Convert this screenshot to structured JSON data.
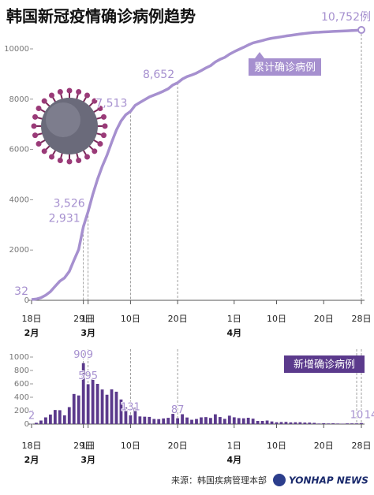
{
  "chart_data": [
    {
      "type": "line",
      "title": "韩国新冠疫情确诊病例趋势",
      "categories": [
        "18日",
        null,
        null,
        null,
        null,
        null,
        null,
        null,
        null,
        null,
        null,
        "29日",
        "1日",
        null,
        null,
        null,
        null,
        null,
        null,
        null,
        null,
        "10日",
        null,
        null,
        null,
        null,
        null,
        null,
        null,
        null,
        null,
        "20日",
        null,
        null,
        null,
        null,
        null,
        null,
        null,
        null,
        null,
        null,
        null,
        "1日",
        null,
        null,
        null,
        null,
        null,
        null,
        null,
        null,
        "10日",
        null,
        null,
        null,
        null,
        null,
        null,
        null,
        null,
        null,
        "20日",
        null,
        null,
        null,
        null,
        null,
        null,
        null,
        "28日"
      ],
      "month_categories": [
        "2月",
        null,
        null,
        null,
        null,
        null,
        null,
        null,
        null,
        null,
        null,
        null,
        "3月",
        null,
        null,
        null,
        null,
        null,
        null,
        null,
        null,
        null,
        null,
        null,
        null,
        null,
        null,
        null,
        null,
        null,
        null,
        null,
        null,
        null,
        null,
        null,
        null,
        null,
        null,
        null,
        null,
        null,
        null,
        "4月",
        null,
        null,
        null,
        null,
        null,
        null,
        null,
        null,
        null,
        null,
        null,
        null,
        null,
        null,
        null,
        null,
        null,
        null,
        null,
        null,
        null,
        null,
        null,
        null,
        null,
        null,
        null
      ],
      "series": [
        {
          "name": "累计确诊病例",
          "color": "#a690cf",
          "values": [
            32,
            51,
            104,
            204,
            346,
            556,
            763,
            893,
            1146,
            1595,
            2022,
            2931,
            3526,
            4212,
            4812,
            5328,
            5766,
            6284,
            6767,
            7134,
            7382,
            7513,
            7755,
            7869,
            7979,
            8086,
            8162,
            8236,
            8320,
            8413,
            8565,
            8652,
            8799,
            8897,
            8961,
            9037,
            9137,
            9241,
            9332,
            9478,
            9583,
            9661,
            9786,
            9887,
            9976,
            10062,
            10156,
            10237,
            10284,
            10331,
            10384,
            10423,
            10450,
            10480,
            10512,
            10537,
            10564,
            10591,
            10613,
            10635,
            10653,
            10661,
            10674,
            10683,
            10694,
            10702,
            10708,
            10718,
            10728,
            10738,
            10752
          ],
          "value_labels": [
            "32",
            null,
            null,
            null,
            null,
            null,
            null,
            null,
            null,
            null,
            null,
            "2,931",
            "3,526",
            null,
            null,
            null,
            null,
            null,
            null,
            null,
            null,
            "7,513",
            null,
            null,
            null,
            null,
            null,
            null,
            null,
            null,
            null,
            "8,652",
            null,
            null,
            null,
            null,
            null,
            null,
            null,
            null,
            null,
            null,
            null,
            null,
            null,
            null,
            null,
            null,
            null,
            null,
            null,
            null,
            null,
            null,
            null,
            null,
            null,
            null,
            null,
            null,
            null,
            null,
            null,
            null,
            null,
            null,
            null,
            null,
            null,
            null,
            "10,752例"
          ]
        }
      ],
      "ylim": [
        0,
        10000
      ],
      "yticks": [
        0,
        2000,
        4000,
        6000,
        8000,
        10000
      ],
      "grid": false
    },
    {
      "type": "bar",
      "categories": [
        "18日",
        null,
        null,
        null,
        null,
        null,
        null,
        null,
        null,
        null,
        null,
        "29日",
        "1日",
        null,
        null,
        null,
        null,
        null,
        null,
        null,
        null,
        "10日",
        null,
        null,
        null,
        null,
        null,
        null,
        null,
        null,
        null,
        "20日",
        null,
        null,
        null,
        null,
        null,
        null,
        null,
        null,
        null,
        null,
        null,
        "1日",
        null,
        null,
        null,
        null,
        null,
        null,
        null,
        null,
        "10日",
        null,
        null,
        null,
        null,
        null,
        null,
        null,
        null,
        null,
        "20日",
        null,
        null,
        null,
        null,
        null,
        null,
        null,
        "28日"
      ],
      "month_categories": [
        "2月",
        null,
        null,
        null,
        null,
        null,
        null,
        null,
        null,
        null,
        null,
        null,
        "3月",
        null,
        null,
        null,
        null,
        null,
        null,
        null,
        null,
        null,
        null,
        null,
        null,
        null,
        null,
        null,
        null,
        null,
        null,
        null,
        null,
        null,
        null,
        null,
        null,
        null,
        null,
        null,
        null,
        null,
        null,
        "4月",
        null,
        null,
        null,
        null,
        null,
        null,
        null,
        null,
        null,
        null,
        null,
        null,
        null,
        null,
        null,
        null,
        null,
        null,
        null,
        null,
        null,
        null,
        null,
        null,
        null,
        null,
        null
      ],
      "series": [
        {
          "name": "新增确诊病例",
          "color": "#5b3a8c",
          "values": [
            2,
            19,
            53,
            100,
            142,
            210,
            207,
            130,
            253,
            449,
            427,
            909,
            595,
            686,
            600,
            516,
            438,
            518,
            483,
            367,
            248,
            131,
            242,
            114,
            110,
            107,
            76,
            74,
            84,
            93,
            152,
            87,
            147,
            98,
            64,
            76,
            100,
            104,
            91,
            146,
            105,
            78,
            125,
            101,
            89,
            86,
            94,
            81,
            47,
            47,
            53,
            39,
            27,
            30,
            32,
            25,
            27,
            27,
            22,
            22,
            18,
            8,
            13,
            9,
            11,
            8,
            6,
            10,
            10,
            10,
            14
          ],
          "value_labels": [
            "2",
            null,
            null,
            null,
            null,
            null,
            null,
            null,
            null,
            null,
            null,
            "909",
            "595",
            null,
            null,
            null,
            null,
            null,
            null,
            null,
            null,
            "131",
            null,
            null,
            null,
            null,
            null,
            null,
            null,
            null,
            null,
            "87",
            null,
            null,
            null,
            null,
            null,
            null,
            null,
            null,
            null,
            null,
            null,
            null,
            null,
            null,
            null,
            null,
            null,
            null,
            null,
            null,
            null,
            null,
            null,
            null,
            null,
            null,
            null,
            null,
            null,
            null,
            null,
            null,
            null,
            null,
            null,
            null,
            null,
            "10",
            "14"
          ]
        }
      ],
      "ylim": [
        0,
        1000
      ],
      "yticks": [
        0,
        200,
        400,
        600,
        800,
        1000
      ],
      "grid": false
    }
  ],
  "source": "来源：韩国疾病管理本部",
  "credit": "YONHAP NEWS"
}
